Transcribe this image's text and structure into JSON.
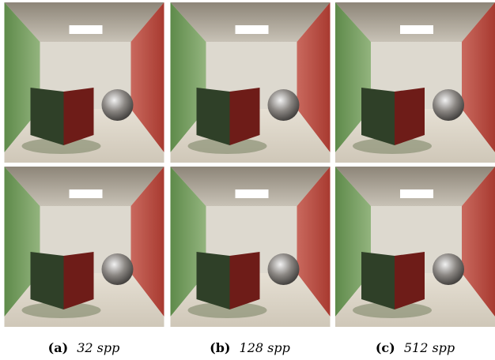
{
  "figure": {
    "subfigures": [
      {
        "label": "(a)",
        "caption": "32 spp"
      },
      {
        "label": "(b)",
        "caption": "128 spp"
      },
      {
        "label": "(c)",
        "caption": "512 spp"
      }
    ]
  }
}
